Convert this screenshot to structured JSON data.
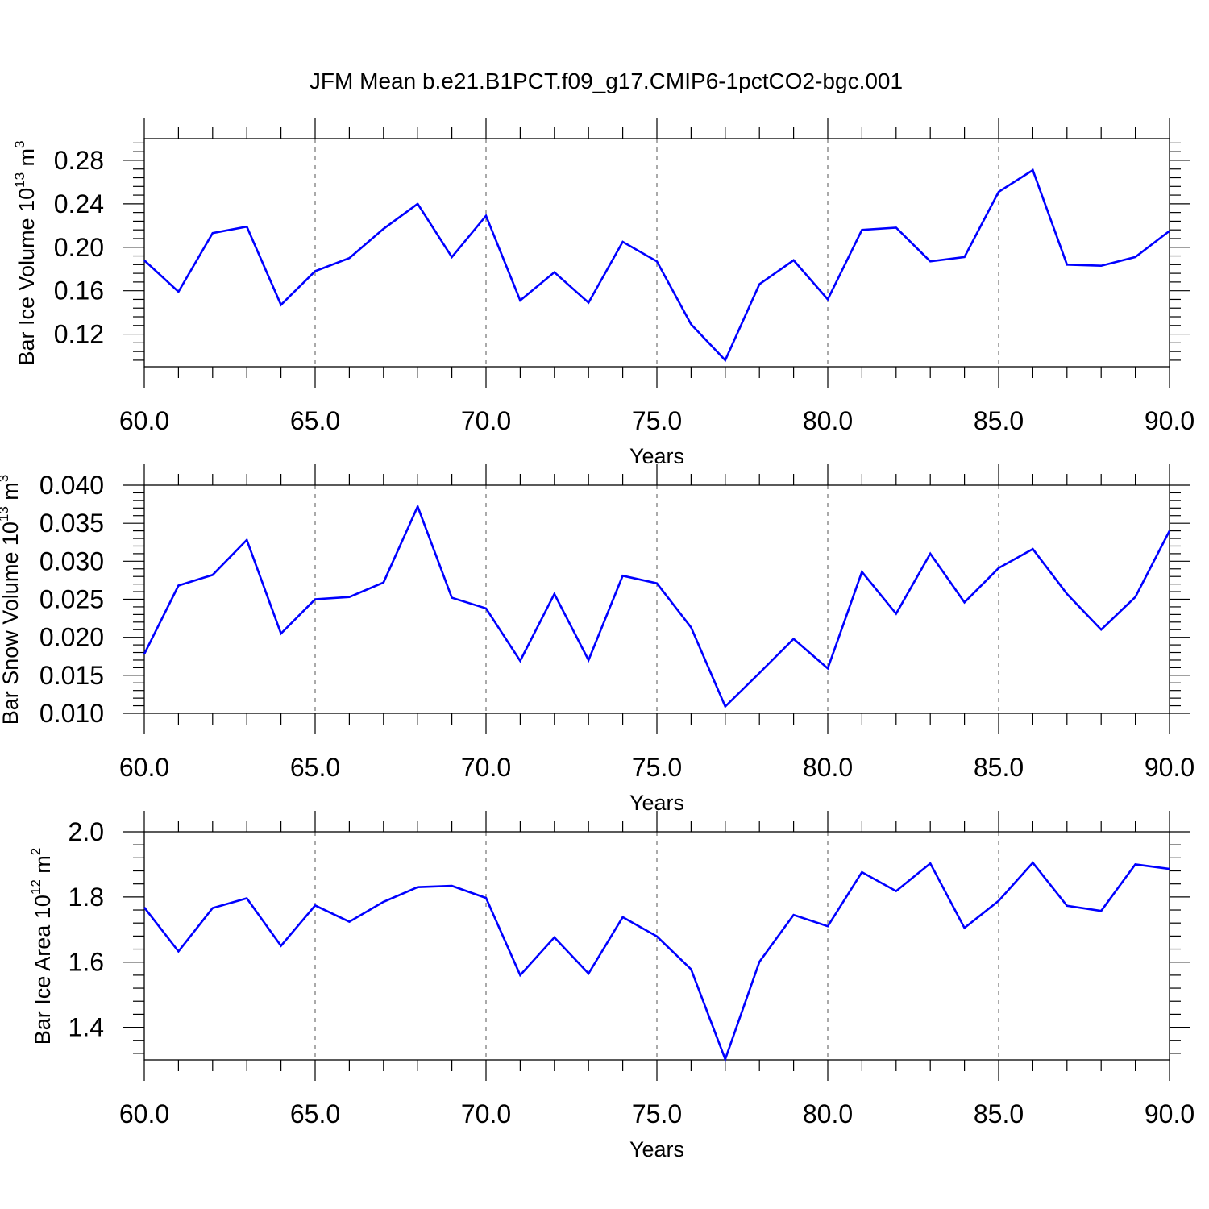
{
  "title": "JFM Mean b.e21.B1PCT.f09_g17.CMIP6-1pctCO2-bgc.001",
  "colors": {
    "line": "#0000ff",
    "axis": "#000000",
    "grid": "#555555"
  },
  "chart_data": [
    {
      "type": "line",
      "xlabel": "Years",
      "ylabel": {
        "text": "Bar Ice Volume 10",
        "exp": "13",
        "unit": "m",
        "unit_exp": "3"
      },
      "xlim": [
        60,
        90
      ],
      "ylim": [
        0.09,
        0.3
      ],
      "xticks": [
        60,
        65,
        70,
        75,
        80,
        85,
        90
      ],
      "xticklabels": [
        "60.0",
        "65.0",
        "70.0",
        "75.0",
        "80.0",
        "85.0",
        "90.0"
      ],
      "yticks": [
        0.12,
        0.16,
        0.2,
        0.24,
        0.28
      ],
      "yticklabels": [
        "0.12",
        "0.16",
        "0.20",
        "0.24",
        "0.28"
      ],
      "grid": "vertical dashed at major x ticks",
      "x": [
        60,
        61,
        62,
        63,
        64,
        65,
        66,
        67,
        68,
        69,
        70,
        71,
        72,
        73,
        74,
        75,
        76,
        77,
        78,
        79,
        80,
        81,
        82,
        83,
        84,
        85,
        86,
        87,
        88,
        89,
        90
      ],
      "values": [
        0.188,
        0.159,
        0.213,
        0.219,
        0.147,
        0.178,
        0.19,
        0.217,
        0.24,
        0.191,
        0.229,
        0.151,
        0.177,
        0.149,
        0.205,
        0.187,
        0.129,
        0.096,
        0.166,
        0.188,
        0.152,
        0.216,
        0.218,
        0.187,
        0.191,
        0.251,
        0.271,
        0.184,
        0.183,
        0.191,
        0.215
      ]
    },
    {
      "type": "line",
      "xlabel": "Years",
      "ylabel": {
        "text": "Bar Snow Volume 10",
        "exp": "13",
        "unit": "m",
        "unit_exp": "3"
      },
      "xlim": [
        60,
        90
      ],
      "ylim": [
        0.01,
        0.04
      ],
      "xticks": [
        60,
        65,
        70,
        75,
        80,
        85,
        90
      ],
      "xticklabels": [
        "60.0",
        "65.0",
        "70.0",
        "75.0",
        "80.0",
        "85.0",
        "90.0"
      ],
      "yticks": [
        0.01,
        0.015,
        0.02,
        0.025,
        0.03,
        0.035,
        0.04
      ],
      "yticklabels": [
        "0.010",
        "0.015",
        "0.020",
        "0.025",
        "0.030",
        "0.035",
        "0.040"
      ],
      "grid": "vertical dashed at major x ticks",
      "x": [
        60,
        61,
        62,
        63,
        64,
        65,
        66,
        67,
        68,
        69,
        70,
        71,
        72,
        73,
        74,
        75,
        76,
        77,
        78,
        79,
        80,
        81,
        82,
        83,
        84,
        85,
        86,
        87,
        88,
        89,
        90
      ],
      "values": [
        0.0178,
        0.0268,
        0.0282,
        0.0328,
        0.0205,
        0.025,
        0.0253,
        0.0272,
        0.0372,
        0.0252,
        0.0238,
        0.0169,
        0.0257,
        0.017,
        0.0281,
        0.0271,
        0.0213,
        0.0109,
        0.0153,
        0.0198,
        0.0159,
        0.0286,
        0.0231,
        0.031,
        0.0246,
        0.0291,
        0.0316,
        0.0257,
        0.021,
        0.0253,
        0.034
      ]
    },
    {
      "type": "line",
      "xlabel": "Years",
      "ylabel": {
        "text": "Bar Ice Area 10",
        "exp": "12",
        "unit": "m",
        "unit_exp": "2"
      },
      "xlim": [
        60,
        90
      ],
      "ylim": [
        1.3,
        2.0
      ],
      "xticks": [
        60,
        65,
        70,
        75,
        80,
        85,
        90
      ],
      "xticklabels": [
        "60.0",
        "65.0",
        "70.0",
        "75.0",
        "80.0",
        "85.0",
        "90.0"
      ],
      "yticks": [
        1.4,
        1.6,
        1.8,
        2.0
      ],
      "yticklabels": [
        "1.4",
        "1.6",
        "1.8",
        "2.0"
      ],
      "grid": "vertical dashed at major x ticks",
      "x": [
        60,
        61,
        62,
        63,
        64,
        65,
        66,
        67,
        68,
        69,
        70,
        71,
        72,
        73,
        74,
        75,
        76,
        77,
        78,
        79,
        80,
        81,
        82,
        83,
        84,
        85,
        86,
        87,
        88,
        89,
        90
      ],
      "values": [
        1.768,
        1.633,
        1.766,
        1.796,
        1.65,
        1.774,
        1.724,
        1.785,
        1.83,
        1.834,
        1.797,
        1.56,
        1.676,
        1.565,
        1.738,
        1.679,
        1.578,
        1.302,
        1.601,
        1.745,
        1.71,
        1.876,
        1.818,
        1.903,
        1.705,
        1.788,
        1.905,
        1.773,
        1.757,
        1.9,
        1.886
      ]
    }
  ]
}
